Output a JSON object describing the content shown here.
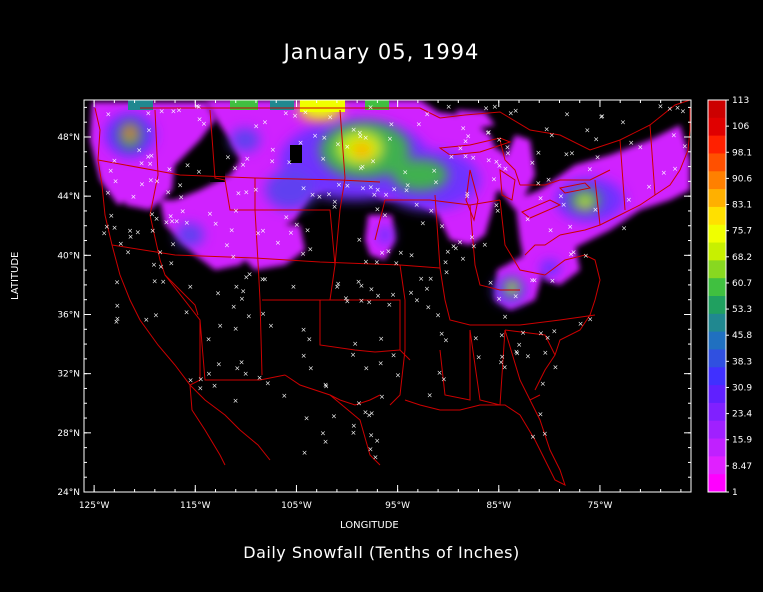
{
  "title": "January 05, 1994",
  "caption": "Daily Snowfall (Tenths of Inches)",
  "x_axis": {
    "label": "LONGITUDE",
    "ticks": [
      "125°W",
      "115°W",
      "105°W",
      "95°W",
      "85°W",
      "75°W"
    ],
    "tick_values": [
      -125,
      -115,
      -105,
      -95,
      -85,
      -75
    ],
    "range": [
      -126,
      -66
    ]
  },
  "y_axis": {
    "label": "LATITUDE",
    "ticks": [
      "48°N",
      "44°N",
      "40°N",
      "36°N",
      "32°N",
      "28°N",
      "24°N"
    ],
    "tick_values": [
      48,
      44,
      40,
      36,
      32,
      28,
      24
    ],
    "range": [
      24,
      50.5
    ]
  },
  "colorbar": {
    "labels": [
      "113",
      "106",
      "98.1",
      "90.6",
      "83.1",
      "75.7",
      "68.2",
      "60.7",
      "53.3",
      "45.8",
      "38.3",
      "30.9",
      "23.4",
      "15.9",
      "8.47",
      "1"
    ],
    "colors": [
      "#cc0000",
      "#e00000",
      "#ff2000",
      "#ff5000",
      "#ff8000",
      "#ffb000",
      "#ffe000",
      "#f0ff00",
      "#c8f000",
      "#88d820",
      "#40c040",
      "#20a060",
      "#208890",
      "#2070c0",
      "#3050e0",
      "#4030ff",
      "#6020ff",
      "#8020ff",
      "#a020ff",
      "#c020ff",
      "#e020ff",
      "#ff00ff"
    ]
  },
  "colors": {
    "background": "#000000",
    "borders": "#cc0000",
    "frame": "#ffffff",
    "stations": "#ffffff"
  }
}
